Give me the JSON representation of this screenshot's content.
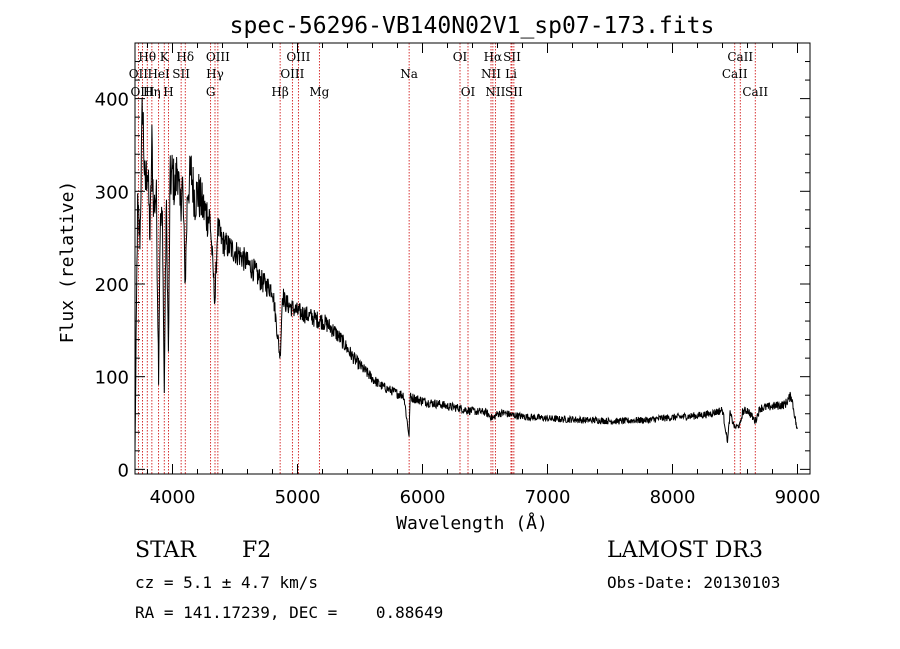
{
  "chart_data": {
    "type": "line",
    "title": "spec-56296-VB140N02V1_sp07-173.fits",
    "xlabel": "Wavelength (Å)",
    "ylabel": "Flux (relative)",
    "xlim": [
      3700,
      9100
    ],
    "ylim": [
      -5,
      460
    ],
    "xticks": [
      4000,
      5000,
      6000,
      7000,
      8000,
      9000
    ],
    "yticks": [
      0,
      100,
      200,
      300,
      400
    ],
    "xtick_labels": [
      "4000",
      "5000",
      "6000",
      "7000",
      "8000",
      "9000"
    ],
    "ytick_labels": [
      "0",
      "100",
      "200",
      "300",
      "400"
    ],
    "grid": false,
    "series": [
      {
        "name": "spectrum",
        "x": [
          3700,
          3720,
          3740,
          3760,
          3780,
          3800,
          3820,
          3835,
          3850,
          3870,
          3889,
          3900,
          3920,
          3934,
          3950,
          3968,
          3980,
          4000,
          4020,
          4040,
          4060,
          4080,
          4102,
          4120,
          4150,
          4180,
          4200,
          4250,
          4300,
          4340,
          4360,
          4400,
          4450,
          4500,
          4550,
          4600,
          4650,
          4700,
          4750,
          4800,
          4861,
          4880,
          4900,
          4950,
          5000,
          5050,
          5100,
          5150,
          5200,
          5250,
          5300,
          5350,
          5400,
          5450,
          5500,
          5550,
          5600,
          5650,
          5700,
          5750,
          5800,
          5850,
          5893,
          5900,
          5950,
          6000,
          6050,
          6100,
          6150,
          6200,
          6250,
          6300,
          6350,
          6400,
          6450,
          6500,
          6563,
          6600,
          6650,
          6700,
          6750,
          6800,
          6900,
          7000,
          7100,
          7200,
          7300,
          7400,
          7500,
          7600,
          7700,
          7800,
          7900,
          8000,
          8100,
          8200,
          8300,
          8400,
          8440,
          8460,
          8498,
          8542,
          8560,
          8600,
          8662,
          8700,
          8800,
          8900,
          8950,
          9000
        ],
        "y": [
          20,
          280,
          250,
          400,
          300,
          330,
          250,
          350,
          280,
          300,
          100,
          260,
          270,
          80,
          290,
          120,
          310,
          320,
          300,
          330,
          280,
          310,
          200,
          300,
          320,
          290,
          300,
          280,
          270,
          180,
          260,
          245,
          240,
          235,
          230,
          222,
          215,
          205,
          198,
          195,
          120,
          190,
          180,
          175,
          170,
          168,
          165,
          162,
          160,
          155,
          148,
          140,
          130,
          120,
          112,
          105,
          98,
          92,
          88,
          85,
          82,
          80,
          35,
          78,
          76,
          74,
          72,
          71,
          70,
          68,
          67,
          66,
          64,
          63,
          62,
          62,
          55,
          60,
          61,
          59,
          58,
          57,
          56,
          55,
          54,
          54,
          53,
          53,
          52,
          52,
          53,
          53,
          55,
          56,
          57,
          58,
          60,
          64,
          30,
          60,
          45,
          48,
          62,
          64,
          52,
          66,
          68,
          70,
          80,
          40
        ]
      }
    ],
    "spectral_lines": [
      {
        "label": "Hθ",
        "wavelength": 3798,
        "row": 1
      },
      {
        "label": "OII",
        "wavelength": 3727,
        "row": 2
      },
      {
        "label": "OIII",
        "wavelength": 3760,
        "row": 3
      },
      {
        "label": "K",
        "wavelength": 3934,
        "row": 1
      },
      {
        "label": "HeI",
        "wavelength": 3889,
        "row": 2
      },
      {
        "label": "Hη",
        "wavelength": 3835,
        "row": 3
      },
      {
        "label": "SII",
        "wavelength": 4069,
        "row": 2
      },
      {
        "label": "H",
        "wavelength": 3968,
        "row": 3
      },
      {
        "label": "Hδ",
        "wavelength": 4102,
        "row": 1
      },
      {
        "label": "OIII",
        "wavelength": 4363,
        "row": 1
      },
      {
        "label": "Hγ",
        "wavelength": 4340,
        "row": 2
      },
      {
        "label": "G",
        "wavelength": 4305,
        "row": 3
      },
      {
        "label": "Hβ",
        "wavelength": 4861,
        "row": 3
      },
      {
        "label": "OIII",
        "wavelength": 5007,
        "row": 1
      },
      {
        "label": "OIII",
        "wavelength": 4959,
        "row": 2
      },
      {
        "label": "Mg",
        "wavelength": 5175,
        "row": 3
      },
      {
        "label": "Na",
        "wavelength": 5893,
        "row": 2
      },
      {
        "label": "OI",
        "wavelength": 6300,
        "row": 1
      },
      {
        "label": "OI",
        "wavelength": 6364,
        "row": 3
      },
      {
        "label": "Hα",
        "wavelength": 6563,
        "row": 1
      },
      {
        "label": "SII",
        "wavelength": 6716,
        "row": 1
      },
      {
        "label": "NII",
        "wavelength": 6548,
        "row": 2
      },
      {
        "label": "Li",
        "wavelength": 6708,
        "row": 2
      },
      {
        "label": "NII",
        "wavelength": 6583,
        "row": 3
      },
      {
        "label": "SII",
        "wavelength": 6731,
        "row": 3
      },
      {
        "label": "CaII",
        "wavelength": 8542,
        "row": 1
      },
      {
        "label": "CaII",
        "wavelength": 8498,
        "row": 2
      },
      {
        "label": "CaII",
        "wavelength": 8662,
        "row": 3
      }
    ]
  },
  "info": {
    "class": "STAR",
    "subclass": "F2",
    "survey": "LAMOST DR3",
    "cz": "cz = 5.1 ± 4.7 km/s",
    "obs_date": "Obs-Date: 20130103",
    "coords": "RA = 141.17239, DEC =    0.88649"
  },
  "colors": {
    "spectrum": "#000000",
    "line_marker": "#cc0000",
    "axes": "#000000"
  }
}
